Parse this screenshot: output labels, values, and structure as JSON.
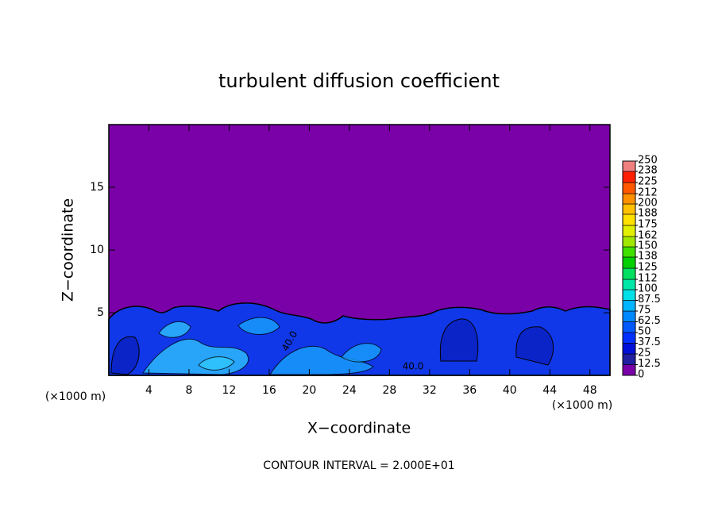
{
  "chart_data": {
    "type": "contour",
    "title": "turbulent diffusion coefficient",
    "xlabel": "X−coordinate",
    "ylabel": "Z−coordinate",
    "x_unit_label": "(×1000 m)",
    "x_unit_label_right": "(×1000 m)",
    "footer": "CONTOUR INTERVAL = 2.000E+01",
    "contour_labels": [
      "40.0",
      "40.0"
    ],
    "xlim": [
      0,
      50
    ],
    "ylim": [
      0,
      20
    ],
    "xticks": [
      4,
      8,
      12,
      16,
      20,
      24,
      28,
      32,
      36,
      40,
      44,
      48
    ],
    "yticks": [
      5,
      10,
      15
    ],
    "field_color": "#7a00a8",
    "clim": [
      0,
      250
    ],
    "colorbar_ticks": [
      0,
      12.5,
      25,
      37.5,
      50,
      62.5,
      75,
      87.5,
      100,
      112,
      125,
      138,
      150,
      162,
      175,
      188,
      200,
      212,
      225,
      238,
      250
    ],
    "colorbar_colors": [
      "#7a00a8",
      "#2020a0",
      "#0010d8",
      "#0030ff",
      "#0058ff",
      "#0088ff",
      "#00b4ff",
      "#00e0e8",
      "#00e8a8",
      "#00e060",
      "#00d000",
      "#40e000",
      "#a0e800",
      "#e0f000",
      "#ffe000",
      "#ffc000",
      "#ff9000",
      "#ff5800",
      "#ff2000",
      "#f08080"
    ]
  }
}
